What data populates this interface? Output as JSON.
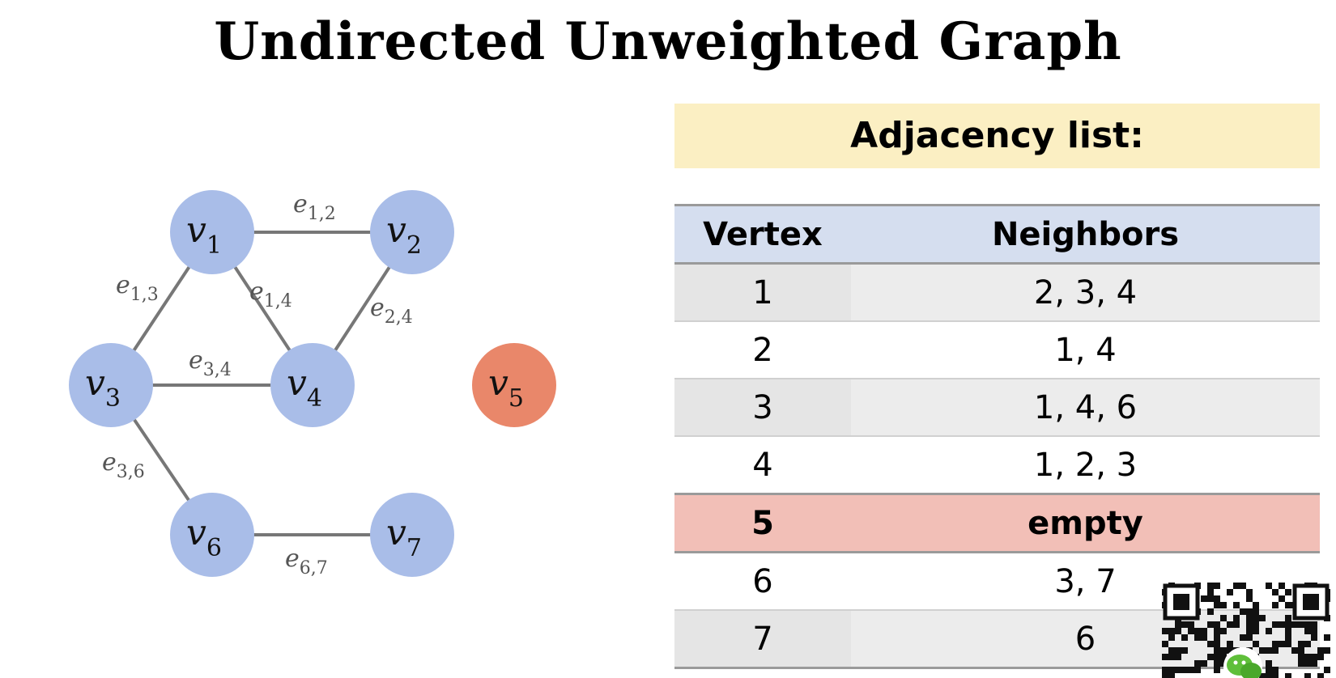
{
  "title": "Undirected Unweighted Graph",
  "graph": {
    "node_color": "#a9bde8",
    "isolated_color": "#e9876a",
    "edge_color": "#777777",
    "nodes": [
      {
        "id": "v1",
        "base": "v",
        "sub": "1",
        "isolated": false
      },
      {
        "id": "v2",
        "base": "v",
        "sub": "2",
        "isolated": false
      },
      {
        "id": "v3",
        "base": "v",
        "sub": "3",
        "isolated": false
      },
      {
        "id": "v4",
        "base": "v",
        "sub": "4",
        "isolated": false
      },
      {
        "id": "v5",
        "base": "v",
        "sub": "5",
        "isolated": true
      },
      {
        "id": "v6",
        "base": "v",
        "sub": "6",
        "isolated": false
      },
      {
        "id": "v7",
        "base": "v",
        "sub": "7",
        "isolated": false
      }
    ],
    "edges": [
      {
        "from": "v1",
        "to": "v2",
        "base": "e",
        "sub": "1,2"
      },
      {
        "from": "v1",
        "to": "v3",
        "base": "e",
        "sub": "1,3"
      },
      {
        "from": "v1",
        "to": "v4",
        "base": "e",
        "sub": "1,4"
      },
      {
        "from": "v2",
        "to": "v4",
        "base": "e",
        "sub": "2,4"
      },
      {
        "from": "v3",
        "to": "v4",
        "base": "e",
        "sub": "3,4"
      },
      {
        "from": "v3",
        "to": "v6",
        "base": "e",
        "sub": "3,6"
      },
      {
        "from": "v6",
        "to": "v7",
        "base": "e",
        "sub": "6,7"
      }
    ]
  },
  "adjacency": {
    "heading": "Adjacency list:",
    "heading_color": "#fbefc3",
    "highlight_color": "#f2bfb7",
    "col_vertex": "Vertex",
    "col_neighbors": "Neighbors",
    "rows": [
      {
        "vertex": "1",
        "neighbors": "2, 3, 4"
      },
      {
        "vertex": "2",
        "neighbors": "1, 4"
      },
      {
        "vertex": "3",
        "neighbors": "1, 4, 6"
      },
      {
        "vertex": "4",
        "neighbors": "1, 2, 3"
      },
      {
        "vertex": "5",
        "neighbors": "empty"
      },
      {
        "vertex": "6",
        "neighbors": "3, 7"
      },
      {
        "vertex": "7",
        "neighbors": "6"
      }
    ]
  },
  "qr_code": {
    "icon": "qr-code-icon",
    "badge_icon": "wechat-icon"
  }
}
